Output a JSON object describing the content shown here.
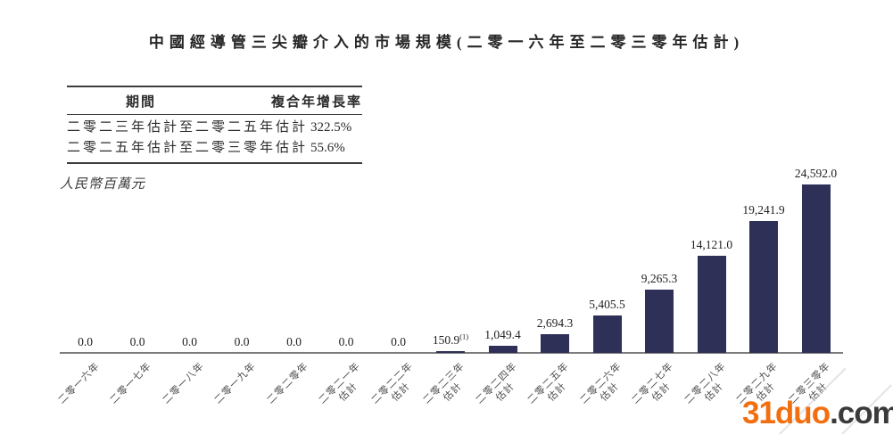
{
  "title": "中國經導管三尖瓣介入的市場規模(二零一六年至二零三零年估計)",
  "cagr_table": {
    "headers": {
      "period": "期間",
      "cagr": "複合年增長率"
    },
    "rows": [
      {
        "period": "二零二三年估計至二零二五年估計",
        "cagr": "322.5%"
      },
      {
        "period": "二零二五年估計至二零三零年估計",
        "cagr": "55.6%"
      }
    ]
  },
  "unit_label": "人民幣百萬元",
  "chart_data": {
    "type": "bar",
    "title": "中國經導管三尖瓣介入的市場規模(二零一六年至二零三零年估計)",
    "ylabel": "人民幣百萬元",
    "xlabel": "",
    "ylim": [
      0,
      24592
    ],
    "grid": false,
    "value_labels_shown": true,
    "bar_color": "#2e3057",
    "axis_color": "#7d7d7d",
    "estimate_suffix": "估計",
    "categories": [
      "二零一六年",
      "二零一七年",
      "二零一八年",
      "二零一九年",
      "二零二零年",
      "二零二一年估計",
      "二零二二年估計",
      "二零二三年估計",
      "二零二四年估計",
      "二零二五年估計",
      "二零二六年估計",
      "二零二七年估計",
      "二零二八年估計",
      "二零二九年估計",
      "二零三零年估計"
    ],
    "values": [
      0.0,
      0.0,
      0.0,
      0.0,
      0.0,
      0.0,
      0.0,
      150.9,
      1049.4,
      2694.3,
      5405.5,
      9265.3,
      14121.0,
      19241.9,
      24592.0
    ],
    "points": [
      {
        "year": "二零一六年",
        "estimate": false,
        "value": 0.0,
        "label": "0.0"
      },
      {
        "year": "二零一七年",
        "estimate": false,
        "value": 0.0,
        "label": "0.0"
      },
      {
        "year": "二零一八年",
        "estimate": false,
        "value": 0.0,
        "label": "0.0"
      },
      {
        "year": "二零一九年",
        "estimate": false,
        "value": 0.0,
        "label": "0.0"
      },
      {
        "year": "二零二零年",
        "estimate": false,
        "value": 0.0,
        "label": "0.0"
      },
      {
        "year": "二零二一年",
        "estimate": true,
        "value": 0.0,
        "label": "0.0"
      },
      {
        "year": "二零二二年",
        "estimate": true,
        "value": 0.0,
        "label": "0.0"
      },
      {
        "year": "二零二三年",
        "estimate": true,
        "value": 150.9,
        "label": "150.9",
        "sup": "(1)"
      },
      {
        "year": "二零二四年",
        "estimate": true,
        "value": 1049.4,
        "label": "1,049.4"
      },
      {
        "year": "二零二五年",
        "estimate": true,
        "value": 2694.3,
        "label": "2,694.3"
      },
      {
        "year": "二零二六年",
        "estimate": true,
        "value": 5405.5,
        "label": "5,405.5"
      },
      {
        "year": "二零二七年",
        "estimate": true,
        "value": 9265.3,
        "label": "9,265.3"
      },
      {
        "year": "二零二八年",
        "estimate": true,
        "value": 14121.0,
        "label": "14,121.0"
      },
      {
        "year": "二零二九年",
        "estimate": true,
        "value": 19241.9,
        "label": "19,241.9"
      },
      {
        "year": "二零三零年",
        "estimate": true,
        "value": 24592.0,
        "label": "24,592.0"
      }
    ]
  },
  "watermark": {
    "brand": "31duo",
    "suffix": ".com",
    "brand_color": "#f26f10",
    "suffix_color": "#3a3a3a"
  }
}
